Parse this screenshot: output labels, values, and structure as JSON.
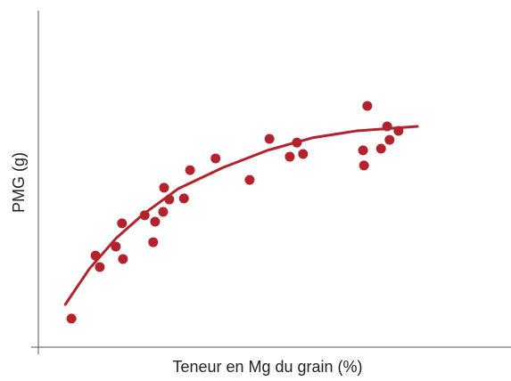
{
  "chart_data": {
    "type": "scatter",
    "x_label": "Teneur en Mg du grain (%)",
    "y_label": "PMG (g)",
    "color": "#b3232d",
    "xlim": [
      0,
      100
    ],
    "ylim": [
      0,
      100
    ],
    "x": [
      7.0,
      12.1,
      13.0,
      16.4,
      17.9,
      17.7,
      22.5,
      24.3,
      24.7,
      26.4,
      26.6,
      27.7,
      30.8,
      32.1,
      37.5,
      44.7,
      48.9,
      53.2,
      54.7,
      56.0,
      68.7,
      68.9,
      69.6,
      72.5,
      73.8,
      74.3,
      76.2
    ],
    "values": [
      8.5,
      27.2,
      23.8,
      29.9,
      26.2,
      36.8,
      39.2,
      31.2,
      37.3,
      40.2,
      47.4,
      43.9,
      44.2,
      52.6,
      56.1,
      49.7,
      61.9,
      56.6,
      60.8,
      57.4,
      58.5,
      54.0,
      71.7,
      59.0,
      65.6,
      61.6,
      64.3
    ],
    "fit": {
      "x": [
        5.7,
        10.8,
        16.4,
        22.1,
        29.6,
        39.1,
        48.5,
        57.9,
        67.4,
        80.2
      ],
      "values": [
        12.7,
        23.3,
        32.3,
        39.4,
        47.1,
        53.4,
        58.5,
        62.2,
        64.3,
        65.6
      ]
    }
  }
}
